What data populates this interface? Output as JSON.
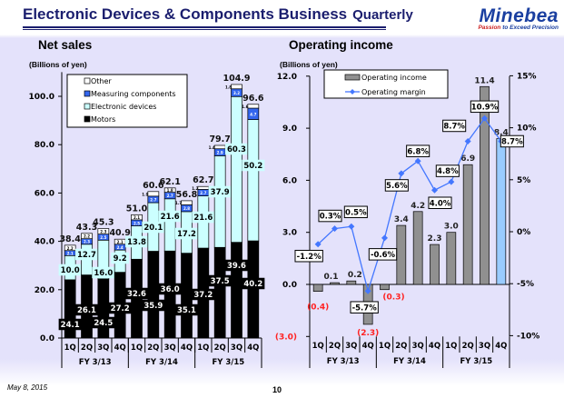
{
  "header": {
    "title": "Electronic Devices & Components Business",
    "subtitle": "Quarterly",
    "logo_text": "Minebea",
    "logo_tagline_a": "Passion",
    "logo_tagline_b": "to Exceed Precision"
  },
  "footer": {
    "date": "May 8, 2015",
    "page": "10"
  },
  "colors": {
    "motors": "#000000",
    "electronic": "#ccffff",
    "measuring": "#3366ee",
    "other": "#ffffff",
    "op_bar": "#909090",
    "op_bar_last": "#99ccff",
    "margin_line": "#4477ff",
    "negative": "#ff2222"
  },
  "chart_data": [
    {
      "type": "bar",
      "stacked": true,
      "title": "Net sales",
      "ylabel": "(Billions of yen)",
      "ylim": [
        0,
        110
      ],
      "yticks": [
        "0.0",
        "20.0",
        "40.0",
        "60.0",
        "80.0",
        "100.0"
      ],
      "ytick_values": [
        0,
        20,
        40,
        60,
        80,
        100
      ],
      "categories": [
        "1Q",
        "2Q",
        "3Q",
        "4Q",
        "1Q",
        "2Q",
        "3Q",
        "4Q",
        "1Q",
        "2Q",
        "3Q",
        "4Q"
      ],
      "groups": [
        "FY 3/13",
        "FY 3/14",
        "FY 3/15"
      ],
      "legend": [
        "Other",
        "Measuring components",
        "Electronic devices",
        "Motors"
      ],
      "series": [
        {
          "name": "Motors",
          "values": [
            24.1,
            26.1,
            24.5,
            27.2,
            32.6,
            35.9,
            36.0,
            35.1,
            37.2,
            37.5,
            39.6,
            40.2
          ]
        },
        {
          "name": "Electronic devices",
          "values": [
            10.0,
            12.7,
            16.0,
            9.2,
            13.8,
            20.1,
            21.6,
            17.2,
            21.6,
            37.9,
            60.3,
            50.2
          ]
        },
        {
          "name": "Measuring components",
          "values": [
            2.1,
            2.3,
            2.5,
            2.4,
            2.5,
            2.7,
            2.7,
            2.8,
            2.7,
            2.9,
            3.2,
            4.7
          ]
        },
        {
          "name": "Other",
          "values": [
            2.2,
            2.2,
            2.3,
            2.1,
            2.1,
            1.9,
            1.8,
            1.7,
            1.2,
            1.4,
            1.8,
            1.6
          ]
        }
      ],
      "totals": [
        "38.4",
        "43.3",
        "45.3",
        "40.9",
        "51.0",
        "60.6",
        "62.1",
        "56.8",
        "62.7",
        "79.7",
        "104.9",
        "96.6"
      ]
    },
    {
      "type": "bar+line",
      "title": "Operating income",
      "ylabel": "(Billions of yen)",
      "ylim": [
        -3,
        12
      ],
      "y2lim": [
        -10,
        15
      ],
      "yticks": [
        "(3.0)",
        "0.0",
        "3.0",
        "6.0",
        "9.0",
        "12.0"
      ],
      "ytick_values": [
        -3,
        0,
        3,
        6,
        9,
        12
      ],
      "y2ticks": [
        "-10%",
        "-5%",
        "0%",
        "5%",
        "10%",
        "15%"
      ],
      "y2tick_values": [
        -10,
        -5,
        0,
        5,
        10,
        15
      ],
      "categories": [
        "1Q",
        "2Q",
        "3Q",
        "4Q",
        "1Q",
        "2Q",
        "3Q",
        "4Q",
        "1Q",
        "2Q",
        "3Q",
        "4Q"
      ],
      "groups": [
        "FY 3/13",
        "FY 3/14",
        "FY 3/15"
      ],
      "legend": [
        "Operating income",
        "Operating margin"
      ],
      "series": [
        {
          "name": "Operating income",
          "values": [
            -0.4,
            0.1,
            0.2,
            -2.3,
            -0.3,
            3.4,
            4.2,
            2.3,
            3.0,
            6.9,
            11.4,
            8.4
          ],
          "labels": [
            "(0.4)",
            "0.1",
            "0.2",
            "(2.3)",
            "(0.3)",
            "3.4",
            "4.2",
            "2.3",
            "3.0",
            "6.9",
            "11.4",
            "8.4"
          ]
        },
        {
          "name": "Operating margin",
          "values": [
            -1.2,
            0.3,
            0.5,
            -5.7,
            -0.6,
            5.6,
            6.8,
            4.0,
            4.8,
            8.7,
            10.9,
            8.7
          ],
          "labels": [
            "-1.2%",
            "0.3%",
            "0.5%",
            "-5.7%",
            "-0.6%",
            "5.6%",
            "6.8%",
            "4.0%",
            "4.8%",
            "8.7%",
            "10.9%",
            "8.7%"
          ]
        }
      ]
    }
  ]
}
